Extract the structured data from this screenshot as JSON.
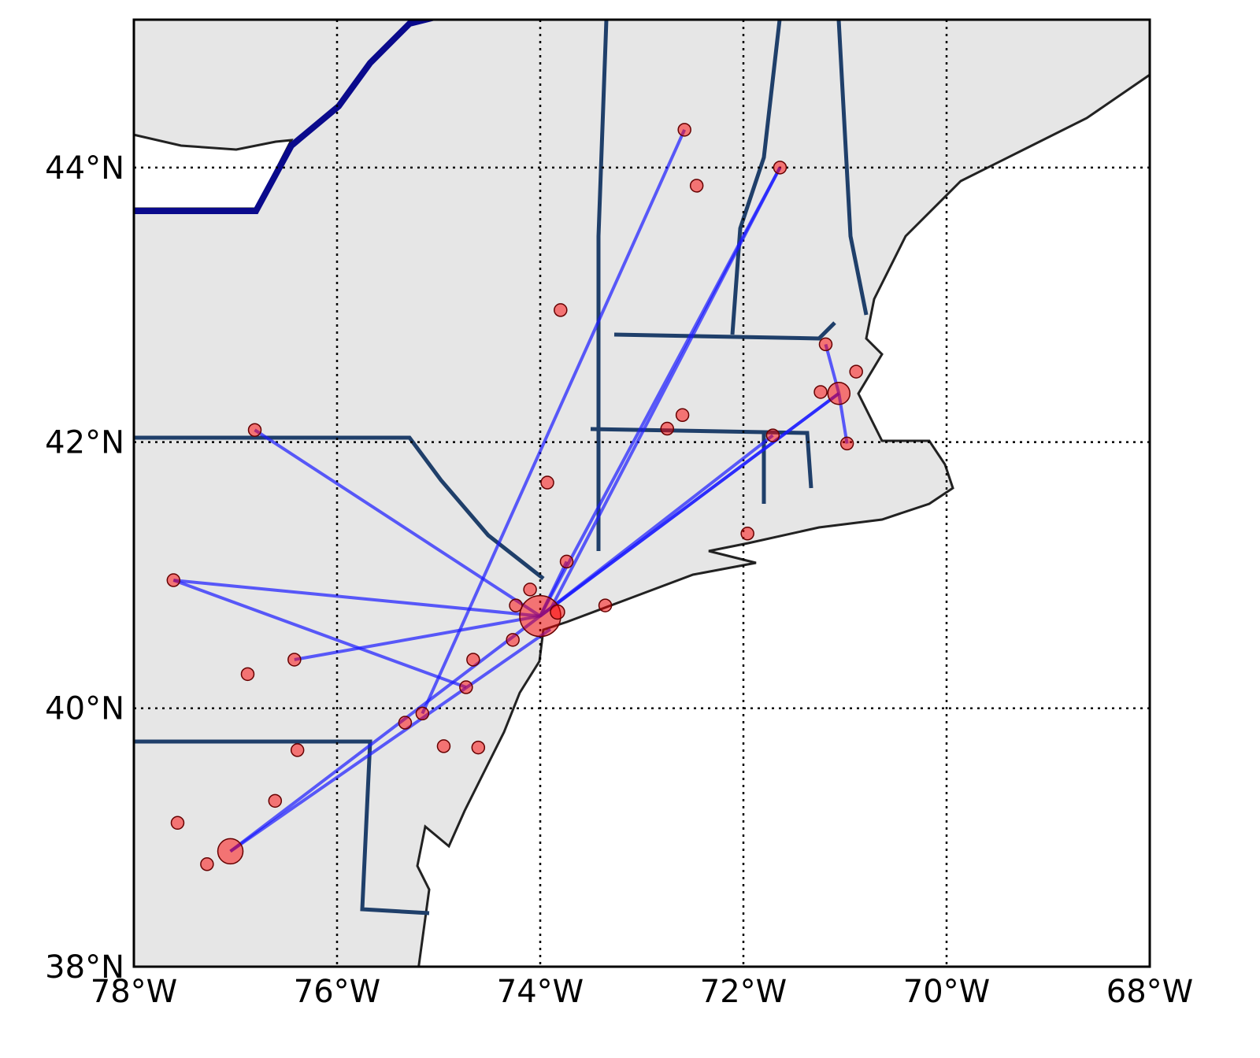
{
  "chart_data": {
    "type": "map",
    "projection": "mercator",
    "xlim": [
      -78,
      -68
    ],
    "ylim": [
      38,
      45.05
    ],
    "xticks": [
      {
        "value": -78,
        "label": "78°W"
      },
      {
        "value": -76,
        "label": "76°W"
      },
      {
        "value": -74,
        "label": "74°W"
      },
      {
        "value": -72,
        "label": "72°W"
      },
      {
        "value": -70,
        "label": "70°W"
      },
      {
        "value": -68,
        "label": "68°W"
      }
    ],
    "yticks": [
      {
        "value": 38,
        "label": "38°N"
      },
      {
        "value": 40,
        "label": "40°N"
      },
      {
        "value": 42,
        "label": "42°N"
      },
      {
        "value": 44,
        "label": "44°N"
      }
    ],
    "grid": true,
    "color": "#ff0000",
    "route_color": "#1a1aff",
    "points": {
      "x": [
        -74.0,
        -71.06,
        -77.05,
        -72.58,
        -71.64,
        -72.46,
        -73.8,
        -71.19,
        -70.89,
        -71.24,
        -70.98,
        -71.71,
        -72.6,
        -72.75,
        -71.96,
        -73.93,
        -73.74,
        -76.81,
        -77.61,
        -76.42,
        -76.88,
        -73.36,
        -74.1,
        -74.24,
        -73.83,
        -74.27,
        -74.66,
        -74.73,
        -75.16,
        -75.33,
        -74.95,
        -74.61,
        -76.39,
        -76.61,
        -77.57,
        -77.28
      ],
      "y": [
        40.7,
        42.36,
        38.9,
        44.27,
        44.0,
        43.87,
        42.97,
        42.72,
        42.52,
        42.37,
        41.99,
        42.05,
        42.2,
        42.1,
        41.32,
        41.7,
        41.11,
        42.09,
        40.97,
        40.37,
        40.26,
        40.78,
        40.9,
        40.78,
        40.73,
        40.52,
        40.37,
        40.16,
        39.96,
        39.89,
        39.71,
        39.7,
        39.68,
        39.29,
        39.12,
        38.8
      ],
      "sizes": [
        26,
        14,
        16,
        8,
        8,
        8,
        8,
        8,
        8,
        8,
        8,
        8,
        8,
        8,
        8,
        8,
        8,
        8,
        8,
        8,
        8,
        8,
        8,
        8,
        9,
        8,
        8,
        8,
        8,
        8,
        8,
        8,
        8,
        8,
        8,
        8
      ]
    },
    "routes": [
      {
        "x": [
          -74.0,
          -71.06
        ],
        "y": [
          40.7,
          42.36
        ]
      },
      {
        "x": [
          -74.0,
          -71.64
        ],
        "y": [
          40.7,
          44.0
        ]
      },
      {
        "x": [
          -73.9,
          -71.64
        ],
        "y": [
          40.75,
          44.0
        ]
      },
      {
        "x": [
          -74.0,
          -71.71
        ],
        "y": [
          40.7,
          42.05
        ]
      },
      {
        "x": [
          -74.0,
          -76.81
        ],
        "y": [
          40.7,
          42.09
        ]
      },
      {
        "x": [
          -74.0,
          -77.61
        ],
        "y": [
          40.7,
          40.97
        ]
      },
      {
        "x": [
          -74.0,
          -76.42
        ],
        "y": [
          40.7,
          40.37
        ]
      },
      {
        "x": [
          -74.0,
          -77.05
        ],
        "y": [
          40.7,
          38.9
        ]
      },
      {
        "x": [
          -73.9,
          -77.05
        ],
        "y": [
          40.6,
          38.9
        ]
      },
      {
        "x": [
          -74.0,
          -73.74
        ],
        "y": [
          40.7,
          41.11
        ]
      },
      {
        "x": [
          -74.73,
          -77.61
        ],
        "y": [
          40.16,
          40.97
        ]
      },
      {
        "x": [
          -75.16,
          -72.58
        ],
        "y": [
          39.96,
          44.27
        ]
      },
      {
        "x": [
          -71.06,
          -71.19
        ],
        "y": [
          42.36,
          42.72
        ]
      },
      {
        "x": [
          -71.06,
          -70.98
        ],
        "y": [
          42.36,
          41.99
        ]
      },
      {
        "x": [
          -71.06,
          -74.0
        ],
        "y": [
          42.36,
          40.7
        ]
      }
    ]
  }
}
